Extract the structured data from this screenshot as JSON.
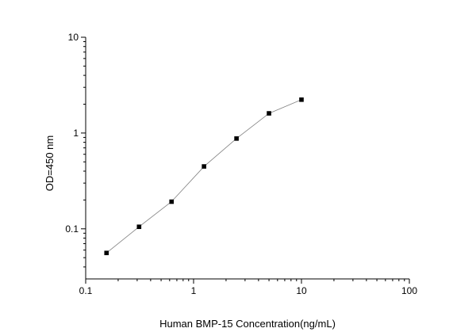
{
  "chart_data": {
    "type": "line",
    "title": "",
    "xlabel": "Human BMP-15  Concentration(ng/mL)",
    "ylabel": "OD=450 nm",
    "x_scale": "log",
    "y_scale": "log",
    "xlim": [
      0.1,
      100
    ],
    "ylim": [
      0.03,
      10
    ],
    "x_ticks": [
      {
        "value": 0.1,
        "label": "0.1"
      },
      {
        "value": 1,
        "label": "1"
      },
      {
        "value": 10,
        "label": "10"
      },
      {
        "value": 100,
        "label": "100"
      }
    ],
    "y_ticks": [
      {
        "value": 0.1,
        "label": "0.1"
      },
      {
        "value": 1,
        "label": "1"
      },
      {
        "value": 10,
        "label": "10"
      }
    ],
    "grid": false,
    "series": [
      {
        "x": [
          0.156,
          0.3125,
          0.625,
          1.25,
          2.5,
          5,
          10
        ],
        "y": [
          0.056,
          0.105,
          0.192,
          0.448,
          0.876,
          1.605,
          2.23
        ],
        "marker": "square",
        "marker_color": "#000000",
        "line_color": "#808080"
      }
    ]
  }
}
